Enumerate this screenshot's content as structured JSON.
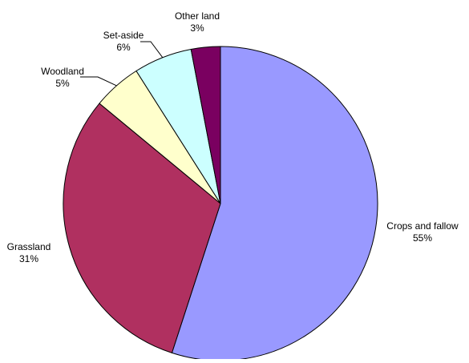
{
  "chart_data": {
    "type": "pie",
    "title": "",
    "slices": [
      {
        "label": "Crops and fallow",
        "percent_label": "55%",
        "value": 55,
        "color": "#9999ff"
      },
      {
        "label": "Grassland",
        "percent_label": "31%",
        "value": 31,
        "color": "#b03060"
      },
      {
        "label": "Woodland",
        "percent_label": "5%",
        "value": 5,
        "color": "#ffffcc"
      },
      {
        "label": "Set-aside",
        "percent_label": "6%",
        "value": 6,
        "color": "#ccffff"
      },
      {
        "label": "Other land",
        "percent_label": "3%",
        "value": 3,
        "color": "#7a0060"
      }
    ],
    "start_angle": "12 o'clock",
    "direction": "clockwise",
    "legend": "none",
    "data_labels": "outside with leader lines"
  }
}
